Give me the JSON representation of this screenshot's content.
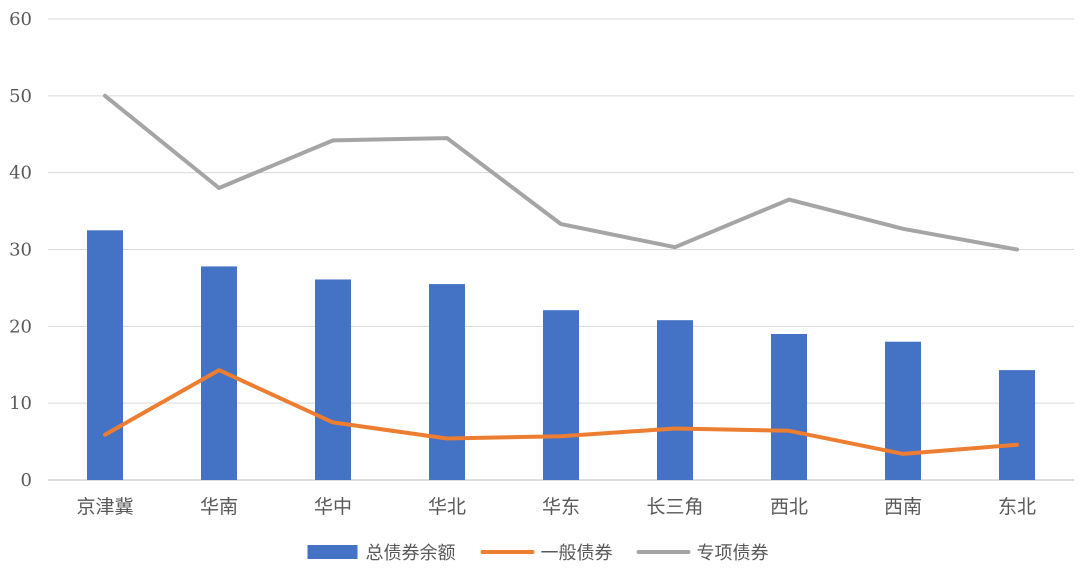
{
  "chart_data": {
    "type": "bar",
    "categories": [
      "京津冀",
      "华南",
      "华中",
      "华北",
      "华东",
      "长三角",
      "西北",
      "西南",
      "东北"
    ],
    "series": [
      {
        "name": "总债券余额",
        "type": "bar",
        "color": "#4472C4",
        "values": [
          32.5,
          27.8,
          26.1,
          25.5,
          22.1,
          20.8,
          19.0,
          18.0,
          14.3
        ]
      },
      {
        "name": "一般债券",
        "type": "line",
        "color": "#ED7D31",
        "values": [
          5.9,
          14.3,
          7.5,
          5.4,
          5.7,
          6.7,
          6.4,
          3.4,
          4.6
        ]
      },
      {
        "name": "专项债券",
        "type": "line",
        "color": "#A5A5A5",
        "values": [
          50.0,
          38.0,
          44.2,
          44.5,
          33.3,
          30.3,
          36.5,
          32.7,
          30.0
        ]
      }
    ],
    "ylim": [
      0,
      60
    ],
    "yticks": [
      "0",
      "10",
      "20",
      "30",
      "40",
      "50",
      "60"
    ],
    "grid": true,
    "legend": "bottom",
    "title": "",
    "xlabel": "",
    "ylabel": ""
  }
}
